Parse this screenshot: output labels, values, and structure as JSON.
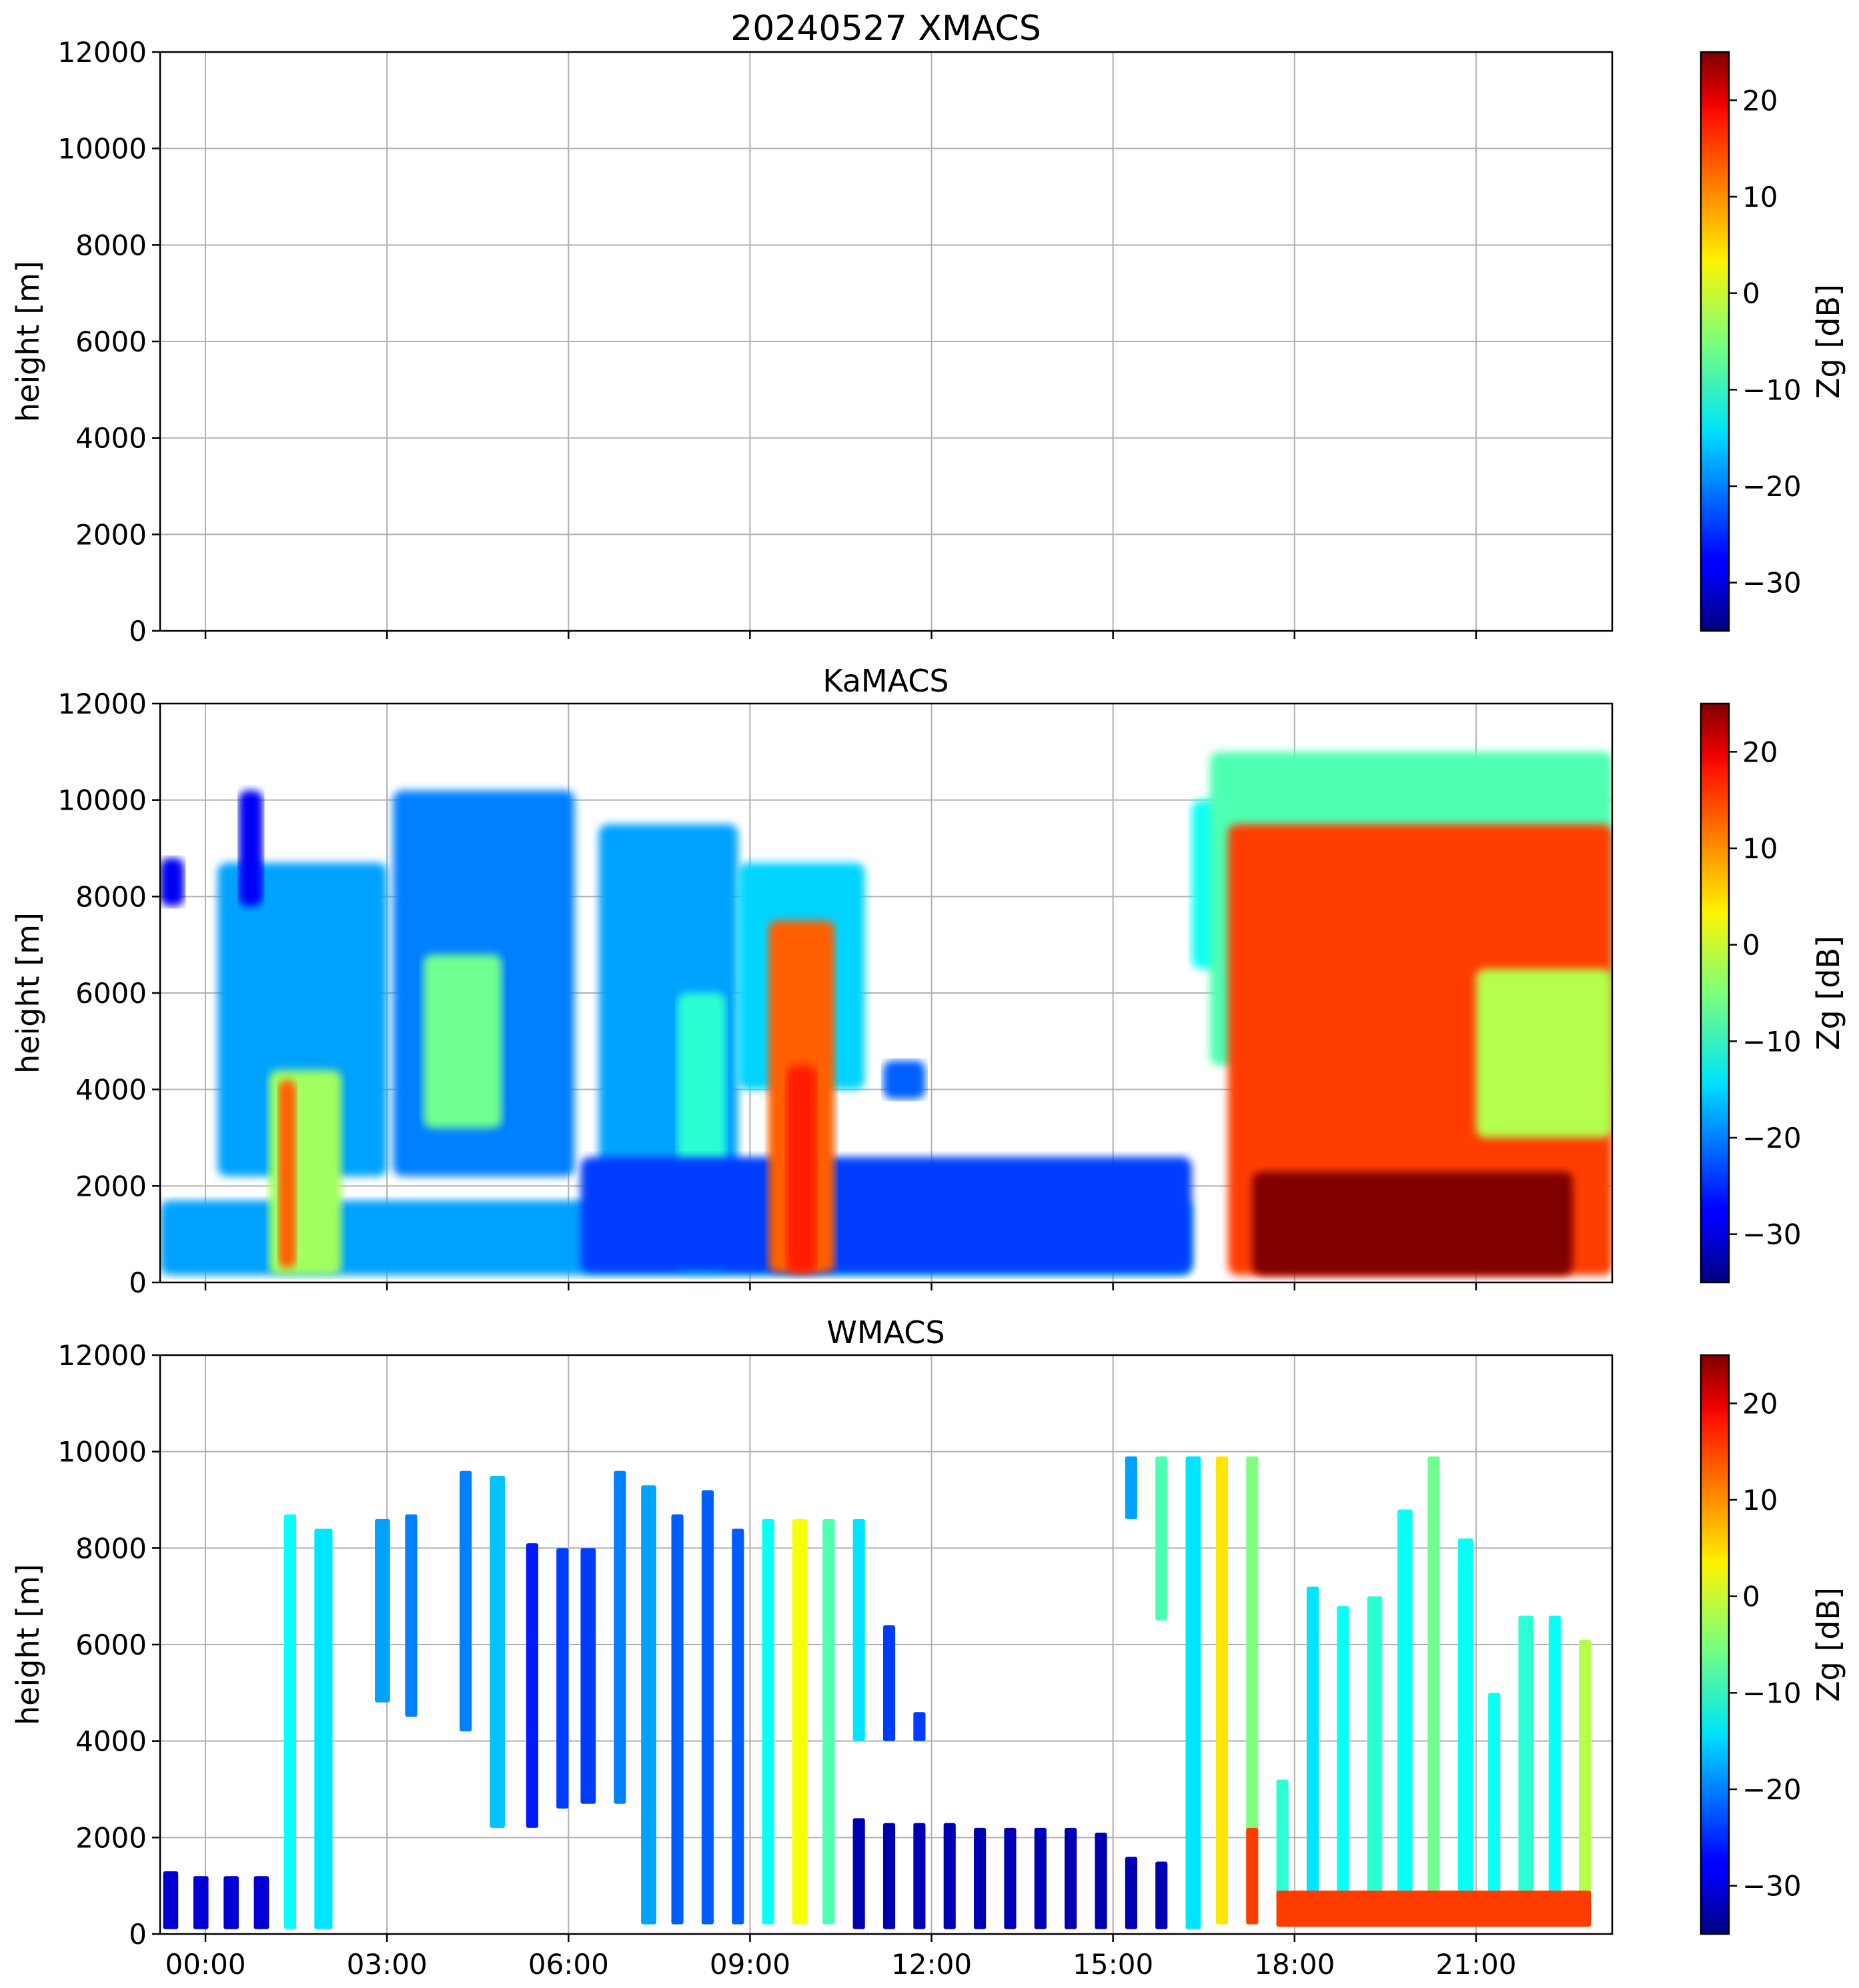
{
  "chart_data": [
    {
      "type": "heatmap",
      "title": "20240527 XMACS",
      "ylabel": "height [m]",
      "y_ticks": [
        "0",
        "2000",
        "4000",
        "6000",
        "8000",
        "10000",
        "12000"
      ],
      "ylim": [
        0,
        12000
      ],
      "x_range_hours": [
        -0.75,
        23.25
      ],
      "grid": true,
      "colorbar": {
        "label": "Zg [dB]",
        "range": [
          -35,
          25
        ],
        "ticks": [
          "−30",
          "−20",
          "−10",
          "0",
          "10",
          "20"
        ],
        "colormap": "jet"
      },
      "has_data": false
    },
    {
      "type": "heatmap",
      "title": "KaMACS",
      "ylabel": "height [m]",
      "y_ticks": [
        "0",
        "2000",
        "4000",
        "6000",
        "8000",
        "10000",
        "12000"
      ],
      "ylim": [
        0,
        12000
      ],
      "x_range_hours": [
        -0.75,
        23.25
      ],
      "grid": true,
      "colorbar": {
        "label": "Zg [dB]",
        "range": [
          -35,
          25
        ],
        "ticks": [
          "−30",
          "−20",
          "−10",
          "0",
          "10",
          "20"
        ],
        "colormap": "jet"
      },
      "features": [
        {
          "t0": -0.75,
          "t1": 16.3,
          "h0": 150,
          "h1": 1700,
          "z": -18
        },
        {
          "t0": -0.75,
          "t1": -0.35,
          "h0": 7800,
          "h1": 8800,
          "z": -28
        },
        {
          "t0": 0.2,
          "t1": 3.0,
          "h0": 2200,
          "h1": 8700,
          "z": -18
        },
        {
          "t0": 0.55,
          "t1": 0.95,
          "h0": 7800,
          "h1": 10200,
          "z": -28
        },
        {
          "t0": 1.05,
          "t1": 2.25,
          "h0": 150,
          "h1": 4400,
          "z": -3
        },
        {
          "t0": 1.2,
          "t1": 1.5,
          "h0": 300,
          "h1": 4200,
          "z": 12
        },
        {
          "t0": 3.1,
          "t1": 6.1,
          "h0": 2200,
          "h1": 10200,
          "z": -20
        },
        {
          "t0": 3.6,
          "t1": 4.9,
          "h0": 3200,
          "h1": 6800,
          "z": -6
        },
        {
          "t0": 6.5,
          "t1": 8.8,
          "h0": 2000,
          "h1": 9500,
          "z": -18
        },
        {
          "t0": 7.8,
          "t1": 8.6,
          "h0": 200,
          "h1": 6000,
          "z": -10
        },
        {
          "t0": 6.2,
          "t1": 16.3,
          "h0": 200,
          "h1": 2600,
          "z": -24
        },
        {
          "t0": 8.8,
          "t1": 10.9,
          "h0": 4000,
          "h1": 8700,
          "z": -15
        },
        {
          "t0": 9.3,
          "t1": 10.4,
          "h0": 200,
          "h1": 7500,
          "z": 12
        },
        {
          "t0": 9.6,
          "t1": 10.1,
          "h0": 200,
          "h1": 4500,
          "z": 16
        },
        {
          "t0": 11.2,
          "t1": 11.9,
          "h0": 3800,
          "h1": 4600,
          "z": -22
        },
        {
          "t0": 16.3,
          "t1": 17.6,
          "h0": 6500,
          "h1": 10000,
          "z": -12
        },
        {
          "t0": 16.6,
          "t1": 23.25,
          "h0": 4500,
          "h1": 11000,
          "z": -8
        },
        {
          "t0": 16.9,
          "t1": 23.25,
          "h0": 150,
          "h1": 9500,
          "z": 14
        },
        {
          "t0": 21.0,
          "t1": 23.25,
          "h0": 3000,
          "h1": 6500,
          "z": -2
        },
        {
          "t0": 17.3,
          "t1": 22.6,
          "h0": 150,
          "h1": 2300,
          "z": 25
        }
      ]
    },
    {
      "type": "heatmap",
      "title": "WMACS",
      "ylabel": "height [m]",
      "y_ticks": [
        "0",
        "2000",
        "4000",
        "6000",
        "8000",
        "10000",
        "12000"
      ],
      "ylim": [
        0,
        12000
      ],
      "x_ticks": [
        "00:00",
        "03:00",
        "06:00",
        "09:00",
        "12:00",
        "15:00",
        "18:00",
        "21:00"
      ],
      "x_tick_hours": [
        0,
        3,
        6,
        9,
        12,
        15,
        18,
        21
      ],
      "x_range_hours": [
        -0.75,
        23.25
      ],
      "grid": true,
      "colorbar": {
        "label": "Zg [dB]",
        "range": [
          -35,
          25
        ],
        "ticks": [
          "−30",
          "−20",
          "−10",
          "0",
          "10",
          "20"
        ],
        "colormap": "jet"
      },
      "features": [
        {
          "t0": -0.7,
          "t1": -0.45,
          "h0": 100,
          "h1": 1300,
          "z": -30
        },
        {
          "t0": -0.2,
          "t1": 0.05,
          "h0": 100,
          "h1": 1200,
          "z": -30
        },
        {
          "t0": 0.3,
          "t1": 0.55,
          "h0": 100,
          "h1": 1200,
          "z": -30
        },
        {
          "t0": 0.8,
          "t1": 1.05,
          "h0": 100,
          "h1": 1200,
          "z": -30
        },
        {
          "t0": 1.3,
          "t1": 1.5,
          "h0": 100,
          "h1": 8700,
          "z": -12
        },
        {
          "t0": 1.8,
          "t1": 2.1,
          "h0": 100,
          "h1": 8400,
          "z": -14
        },
        {
          "t0": 2.8,
          "t1": 3.05,
          "h0": 4800,
          "h1": 8600,
          "z": -18
        },
        {
          "t0": 3.3,
          "t1": 3.5,
          "h0": 4500,
          "h1": 8700,
          "z": -20
        },
        {
          "t0": 4.2,
          "t1": 4.4,
          "h0": 4200,
          "h1": 9600,
          "z": -20
        },
        {
          "t0": 4.7,
          "t1": 4.95,
          "h0": 2200,
          "h1": 9500,
          "z": -16
        },
        {
          "t0": 5.3,
          "t1": 5.5,
          "h0": 2200,
          "h1": 8100,
          "z": -26
        },
        {
          "t0": 5.8,
          "t1": 6.0,
          "h0": 2600,
          "h1": 8000,
          "z": -24
        },
        {
          "t0": 6.2,
          "t1": 6.45,
          "h0": 2700,
          "h1": 8000,
          "z": -24
        },
        {
          "t0": 6.75,
          "t1": 6.95,
          "h0": 2700,
          "h1": 9600,
          "z": -20
        },
        {
          "t0": 7.2,
          "t1": 7.45,
          "h0": 200,
          "h1": 9300,
          "z": -18
        },
        {
          "t0": 7.7,
          "t1": 7.9,
          "h0": 200,
          "h1": 8700,
          "z": -22
        },
        {
          "t0": 8.2,
          "t1": 8.4,
          "h0": 200,
          "h1": 9200,
          "z": -22
        },
        {
          "t0": 8.7,
          "t1": 8.9,
          "h0": 200,
          "h1": 8400,
          "z": -22
        },
        {
          "t0": 9.2,
          "t1": 9.4,
          "h0": 200,
          "h1": 8600,
          "z": -12
        },
        {
          "t0": 9.7,
          "t1": 9.95,
          "h0": 200,
          "h1": 8600,
          "z": 2
        },
        {
          "t0": 10.2,
          "t1": 10.4,
          "h0": 200,
          "h1": 8600,
          "z": -8
        },
        {
          "t0": 10.7,
          "t1": 10.9,
          "h0": 4000,
          "h1": 8600,
          "z": -14
        },
        {
          "t0": 11.2,
          "t1": 11.4,
          "h0": 4000,
          "h1": 6400,
          "z": -24
        },
        {
          "t0": 11.7,
          "t1": 11.9,
          "h0": 4000,
          "h1": 4600,
          "z": -24
        },
        {
          "t0": 10.7,
          "t1": 10.9,
          "h0": 100,
          "h1": 2400,
          "z": -32
        },
        {
          "t0": 11.2,
          "t1": 11.4,
          "h0": 100,
          "h1": 2300,
          "z": -32
        },
        {
          "t0": 11.7,
          "t1": 11.9,
          "h0": 100,
          "h1": 2300,
          "z": -32
        },
        {
          "t0": 12.2,
          "t1": 12.4,
          "h0": 100,
          "h1": 2300,
          "z": -32
        },
        {
          "t0": 12.7,
          "t1": 12.9,
          "h0": 100,
          "h1": 2200,
          "z": -32
        },
        {
          "t0": 13.2,
          "t1": 13.4,
          "h0": 100,
          "h1": 2200,
          "z": -32
        },
        {
          "t0": 13.7,
          "t1": 13.9,
          "h0": 100,
          "h1": 2200,
          "z": -32
        },
        {
          "t0": 14.2,
          "t1": 14.4,
          "h0": 100,
          "h1": 2200,
          "z": -32
        },
        {
          "t0": 14.7,
          "t1": 14.9,
          "h0": 100,
          "h1": 2100,
          "z": -32
        },
        {
          "t0": 15.2,
          "t1": 15.4,
          "h0": 100,
          "h1": 1600,
          "z": -32
        },
        {
          "t0": 15.7,
          "t1": 15.9,
          "h0": 100,
          "h1": 1500,
          "z": -32
        },
        {
          "t0": 15.2,
          "t1": 15.4,
          "h0": 8600,
          "h1": 9900,
          "z": -18
        },
        {
          "t0": 15.7,
          "t1": 15.9,
          "h0": 6500,
          "h1": 9900,
          "z": -8
        },
        {
          "t0": 16.2,
          "t1": 16.45,
          "h0": 100,
          "h1": 9900,
          "z": -14
        },
        {
          "t0": 16.7,
          "t1": 16.9,
          "h0": 200,
          "h1": 9900,
          "z": 4
        },
        {
          "t0": 17.2,
          "t1": 17.4,
          "h0": 200,
          "h1": 9900,
          "z": -5
        },
        {
          "t0": 17.2,
          "t1": 17.4,
          "h0": 200,
          "h1": 2200,
          "z": 14
        },
        {
          "t0": 17.7,
          "t1": 17.9,
          "h0": 200,
          "h1": 3200,
          "z": -10
        },
        {
          "t0": 18.2,
          "t1": 18.4,
          "h0": 200,
          "h1": 7200,
          "z": -14
        },
        {
          "t0": 18.7,
          "t1": 18.9,
          "h0": 200,
          "h1": 6800,
          "z": -12
        },
        {
          "t0": 19.2,
          "t1": 19.45,
          "h0": 200,
          "h1": 7000,
          "z": -10
        },
        {
          "t0": 19.7,
          "t1": 19.95,
          "h0": 200,
          "h1": 8800,
          "z": -12
        },
        {
          "t0": 20.2,
          "t1": 20.4,
          "h0": 200,
          "h1": 9900,
          "z": -6
        },
        {
          "t0": 20.7,
          "t1": 20.95,
          "h0": 200,
          "h1": 8200,
          "z": -12
        },
        {
          "t0": 21.2,
          "t1": 21.4,
          "h0": 200,
          "h1": 5000,
          "z": -12
        },
        {
          "t0": 21.7,
          "t1": 21.95,
          "h0": 200,
          "h1": 6600,
          "z": -10
        },
        {
          "t0": 22.2,
          "t1": 22.4,
          "h0": 200,
          "h1": 6600,
          "z": -12
        },
        {
          "t0": 22.7,
          "t1": 22.9,
          "h0": 200,
          "h1": 6100,
          "z": -2
        },
        {
          "t0": 17.7,
          "t1": 22.9,
          "h0": 150,
          "h1": 900,
          "z": 14
        }
      ]
    }
  ]
}
